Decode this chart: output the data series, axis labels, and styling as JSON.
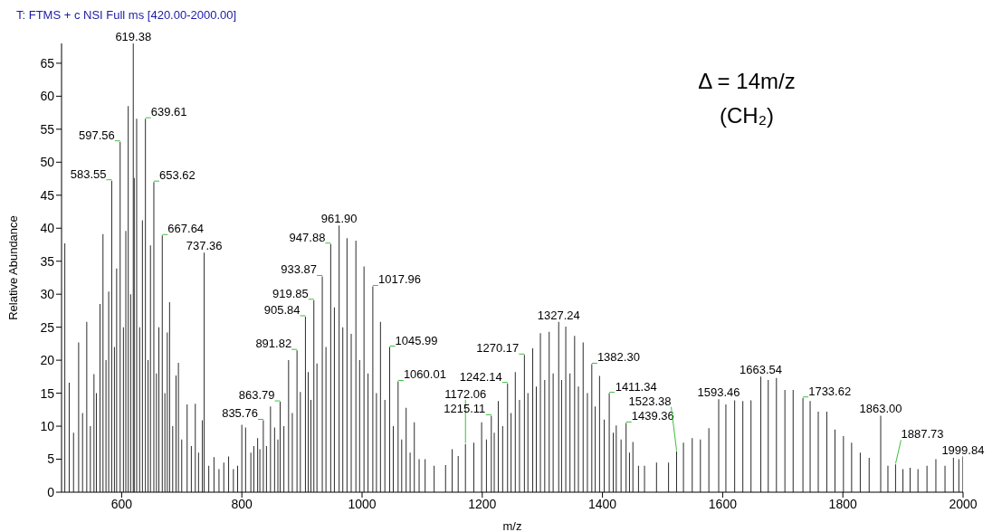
{
  "chart_data": {
    "type": "bar",
    "title": "T: FTMS + c NSI Full ms [420.00-2000.00]",
    "xlabel": "m/z",
    "ylabel": "Relative Abundance",
    "xlim": [
      500,
      2000
    ],
    "xticks": [
      600,
      800,
      1000,
      1200,
      1400,
      1600,
      1800,
      2000
    ],
    "ylim": [
      0,
      68
    ],
    "yticks": [
      0,
      5,
      10,
      15,
      20,
      25,
      30,
      35,
      40,
      45,
      50,
      55,
      60,
      65
    ],
    "grid": false,
    "legend": false,
    "series": [
      {
        "color": "#2b2b2b",
        "x": [
          505.5,
          512.8,
          520,
          528.5,
          535,
          542,
          548,
          554,
          558,
          564,
          569,
          574,
          578.5,
          583.55,
          588,
          591.7,
          597.56,
          603,
          607,
          611,
          615,
          619.38,
          621,
          625,
          630,
          634.6,
          639.61,
          644,
          648,
          653.62,
          658,
          662,
          667.64,
          672,
          676,
          679.8,
          685,
          690.5,
          694.5,
          700,
          709,
          716,
          722.6,
          728,
          734.3,
          737.36,
          745,
          753.7,
          762,
          770,
          778,
          786,
          793,
          800,
          806.3,
          815,
          820,
          826.3,
          830,
          835.76,
          841,
          847.7,
          854.5,
          860,
          863.79,
          870,
          877.8,
          884,
          891.82,
          897.4,
          905.84,
          910.5,
          915,
          919.85,
          925,
          933.87,
          940,
          947.88,
          954,
          961.9,
          968,
          975,
          982,
          989.8,
          996,
          1003.3,
          1010,
          1017.96,
          1024,
          1030.7,
          1038,
          1045.99,
          1052,
          1060.01,
          1066,
          1073.4,
          1080,
          1087,
          1095,
          1105,
          1120,
          1139,
          1150,
          1160,
          1172.06,
          1186,
          1199,
          1207,
          1215.11,
          1220,
          1226.7,
          1234,
          1242.14,
          1248,
          1255,
          1262,
          1270.17,
          1276,
          1284,
          1290,
          1296.8,
          1304,
          1311.4,
          1318,
          1327.24,
          1332,
          1339,
          1346,
          1353.7,
          1360,
          1367.9,
          1375,
          1382.3,
          1388,
          1395.2,
          1403,
          1411.34,
          1418,
          1423,
          1431,
          1439.36,
          1445,
          1450.7,
          1460,
          1470,
          1490,
          1510,
          1523.38,
          1534.8,
          1549.4,
          1563,
          1577.1,
          1593.46,
          1605.4,
          1620,
          1633.6,
          1647.2,
          1663.54,
          1675.9,
          1689.5,
          1703.6,
          1717.3,
          1733.62,
          1745.6,
          1759.1,
          1773.3,
          1786.9,
          1801,
          1814.6,
          1829,
          1843.8,
          1863,
          1875,
          1887.73,
          1900,
          1911.9,
          1925,
          1940,
          1954.8,
          1970,
          1984,
          1993,
          1999.84
        ],
        "values": [
          37.7,
          16.6,
          9,
          22.7,
          12,
          25.8,
          10,
          17.9,
          15,
          28.5,
          39.1,
          20,
          30.4,
          47.2,
          22,
          33.9,
          53.1,
          25,
          39.6,
          58.5,
          30,
          68,
          47.6,
          56.6,
          25,
          41.2,
          56.6,
          20,
          37.4,
          47,
          18,
          25,
          38.9,
          15,
          24.2,
          28.8,
          10,
          17.7,
          19.6,
          8,
          13.3,
          7,
          13.4,
          6,
          10.9,
          36.3,
          4,
          5.3,
          3.5,
          4.5,
          5.4,
          3.5,
          4,
          10.2,
          9.8,
          6,
          7,
          8.2,
          6.5,
          10.9,
          7,
          13,
          9.8,
          8,
          13.7,
          10,
          20,
          12,
          21.5,
          15.2,
          26.6,
          18.2,
          14,
          29.1,
          19.5,
          32.7,
          22,
          37.6,
          28,
          40.4,
          25,
          38.5,
          24,
          38.1,
          20,
          34.2,
          18,
          31.2,
          15,
          25.8,
          14,
          22,
          10,
          16.8,
          8,
          12.8,
          6,
          10.6,
          5,
          5,
          4,
          4.1,
          6.5,
          5.5,
          7.3,
          7.5,
          10.6,
          8,
          11.6,
          9,
          13.8,
          10,
          16.5,
          12,
          18.2,
          14,
          20.8,
          15,
          21.8,
          16,
          24.1,
          17,
          24.3,
          18,
          25.8,
          17,
          25.1,
          18,
          23.7,
          16,
          22.7,
          15,
          19.4,
          13,
          17.6,
          11,
          15,
          9,
          10.1,
          8,
          10.5,
          6,
          7.6,
          4,
          4,
          4.5,
          4.5,
          6.2,
          7.5,
          8.2,
          8,
          9.7,
          14.1,
          13.3,
          13.9,
          13.8,
          13.9,
          17.5,
          17,
          17.3,
          15.5,
          15.5,
          14.3,
          13.8,
          12.2,
          12.2,
          9.5,
          8.5,
          7.5,
          6,
          5.2,
          11.6,
          4,
          4.2,
          3.5,
          3.7,
          3.5,
          4,
          5,
          4,
          5.2,
          5,
          5.4
        ]
      }
    ],
    "annotations": [
      {
        "text": "583.55",
        "x": 583.55,
        "y": 47.2
      },
      {
        "text": "597.56",
        "x": 597.56,
        "y": 53.1
      },
      {
        "text": "619.38",
        "x": 619.38,
        "y": 68
      },
      {
        "text": "639.61",
        "x": 639.61,
        "y": 56.6
      },
      {
        "text": "653.62",
        "x": 653.62,
        "y": 47
      },
      {
        "text": "667.64",
        "x": 667.64,
        "y": 38.9
      },
      {
        "text": "737.36",
        "x": 737.36,
        "y": 36.3
      },
      {
        "text": "835.76",
        "x": 835.76,
        "y": 10.9
      },
      {
        "text": "863.79",
        "x": 863.79,
        "y": 13.7
      },
      {
        "text": "891.82",
        "x": 891.82,
        "y": 21.5
      },
      {
        "text": "905.84",
        "x": 905.84,
        "y": 26.6
      },
      {
        "text": "919.85",
        "x": 919.85,
        "y": 29.1
      },
      {
        "text": "933.87",
        "x": 933.87,
        "y": 32.7
      },
      {
        "text": "947.88",
        "x": 947.88,
        "y": 37.6
      },
      {
        "text": "961.90",
        "x": 961.9,
        "y": 40.4
      },
      {
        "text": "1017.96",
        "x": 1017.96,
        "y": 31.2
      },
      {
        "text": "1045.99",
        "x": 1045.99,
        "y": 22
      },
      {
        "text": "1060.01",
        "x": 1060.01,
        "y": 16.8
      },
      {
        "text": "1172.06",
        "x": 1172.06,
        "y": 7.3
      },
      {
        "text": "1215.11",
        "x": 1215.11,
        "y": 11.6
      },
      {
        "text": "1242.14",
        "x": 1242.14,
        "y": 16.5
      },
      {
        "text": "1270.17",
        "x": 1270.17,
        "y": 20.8
      },
      {
        "text": "1327.24",
        "x": 1327.24,
        "y": 25.8
      },
      {
        "text": "1382.30",
        "x": 1382.3,
        "y": 19.4
      },
      {
        "text": "1411.34",
        "x": 1411.34,
        "y": 15
      },
      {
        "text": "1439.36",
        "x": 1439.36,
        "y": 10.5
      },
      {
        "text": "1523.38",
        "x": 1523.38,
        "y": 6.2
      },
      {
        "text": "1593.46",
        "x": 1593.46,
        "y": 14.1
      },
      {
        "text": "1663.54",
        "x": 1663.54,
        "y": 17.5
      },
      {
        "text": "1733.62",
        "x": 1733.62,
        "y": 14.3
      },
      {
        "text": "1863.00",
        "x": 1863,
        "y": 11.6
      },
      {
        "text": "1887.73",
        "x": 1887.73,
        "y": 4.2
      },
      {
        "text": "1999.84",
        "x": 1999.84,
        "y": 5.4
      },
      "Δ = 14m/z",
      "(CH₂)"
    ]
  }
}
